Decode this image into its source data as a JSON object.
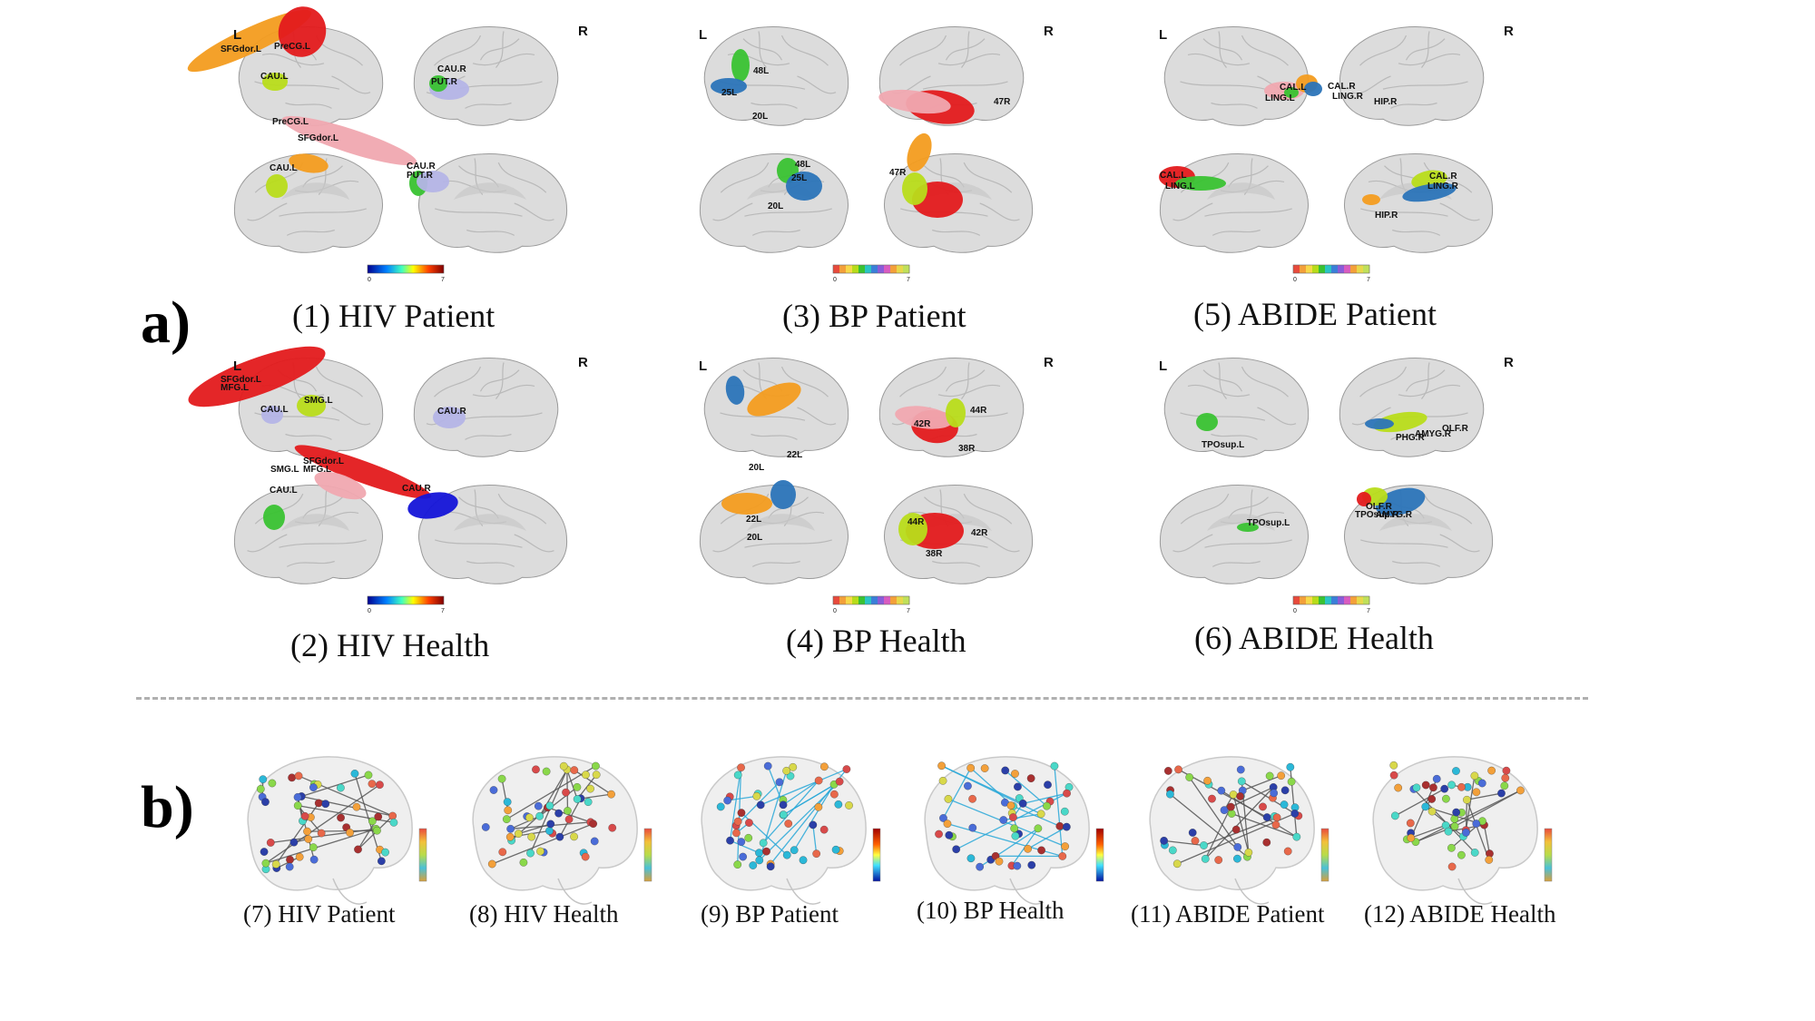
{
  "section_labels": {
    "a": "a)",
    "b": "b)"
  },
  "colors": {
    "brain": "#dcdcdc",
    "brain_edge": "#9a9a9a",
    "red": "#e31a1c",
    "orange": "#f39c1f",
    "green": "#39c232",
    "yellow_green": "#b8dc1a",
    "blue": "#2b74b8",
    "dark_blue": "#1414d8",
    "lavender": "#b4b4e6",
    "pink": "#f0a8b0",
    "edge_gray": "#555555",
    "edge_blue": "#29a8d8",
    "divider": "#b0b0b0"
  },
  "panels_a": [
    {
      "caption": "(1) HIV Patient",
      "left": "L",
      "right": "R",
      "colorbar": {
        "style": "jet",
        "min": "0",
        "max": "7"
      },
      "region_labels": [
        "SFGdor.L",
        "PreCG.L",
        "CAU.L",
        "CAU.R",
        "PUT.R",
        "PreCG.L",
        "SFGdor.L",
        "CAU.L",
        "CAU.R",
        "PUT.R"
      ]
    },
    {
      "caption": "(2) HIV Health",
      "left": "L",
      "right": "R",
      "colorbar": {
        "style": "jet",
        "min": "0",
        "max": "7"
      },
      "region_labels": [
        "SFGdor.L",
        "MFG.L",
        "CAU.L",
        "SMG.L",
        "CAU.R",
        "SMG.L",
        "SFGdor.L",
        "MFG.L",
        "CAU.L",
        "CAU.R"
      ]
    },
    {
      "caption": "(3) BP Patient",
      "left": "L",
      "right": "R",
      "colorbar": {
        "style": "discrete",
        "min": "0",
        "max": "7"
      },
      "region_labels": [
        "48L",
        "25L",
        "20L",
        "47R",
        "48L",
        "25L",
        "20L",
        "47R"
      ]
    },
    {
      "caption": "(4) BP Health",
      "left": "L",
      "right": "R",
      "colorbar": {
        "style": "discrete",
        "min": "0",
        "max": "7"
      },
      "region_labels": [
        "22L",
        "20L",
        "42R",
        "44R",
        "38R",
        "22L",
        "20L",
        "44R",
        "42R",
        "38R"
      ]
    },
    {
      "caption": "(5) ABIDE Patient",
      "left": "L",
      "right": "R",
      "colorbar": {
        "style": "discrete",
        "min": "0",
        "max": "7"
      },
      "region_labels": [
        "CAL.L",
        "LING.L",
        "CAL.R",
        "LING.R",
        "HIP.R",
        "CAL.L",
        "LING.L",
        "HIP.R",
        "CAL.R",
        "LING.R"
      ]
    },
    {
      "caption": "(6) ABIDE Health",
      "left": "L",
      "right": "R",
      "colorbar": {
        "style": "discrete",
        "min": "0",
        "max": "7"
      },
      "region_labels": [
        "TPOsup.L",
        "PHG.R",
        "AMYG.R",
        "OLF.R",
        "TPOsup.L",
        "OLF.R",
        "TPOsup.R",
        "AMYG.R"
      ]
    }
  ],
  "panels_b": [
    {
      "caption": "(7) HIV Patient",
      "edge_style": "gray"
    },
    {
      "caption": "(8) HIV Health",
      "edge_style": "gray"
    },
    {
      "caption": "(9) BP Patient",
      "edge_style": "blue"
    },
    {
      "caption": "(10) BP Health",
      "edge_style": "blue"
    },
    {
      "caption": "(11) ABIDE Patient",
      "edge_style": "gray"
    },
    {
      "caption": "(12) ABIDE Health",
      "edge_style": "gray"
    }
  ]
}
